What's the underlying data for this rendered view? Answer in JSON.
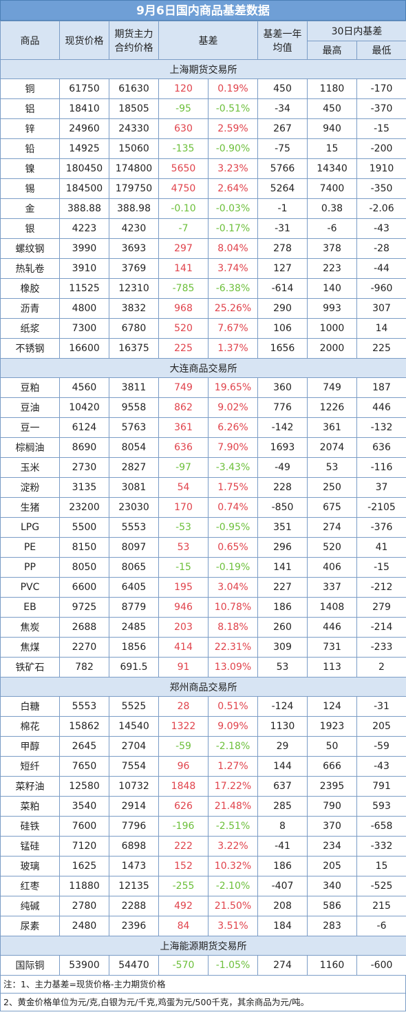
{
  "title": "9月6日国内商品基差数据",
  "headers": {
    "commodity": "商品",
    "spot": "现货价格",
    "futures_line1": "期货主力",
    "futures_line2": "合约价格",
    "basis": "基差",
    "avg_line1": "基差一年",
    "avg_line2": "均值",
    "range30": "30日内基差",
    "high": "最高",
    "low": "最低"
  },
  "sections": [
    {
      "name": "上海期货交易所",
      "rows": [
        [
          "铜",
          "61750",
          "61630",
          "120",
          "0.19%",
          "450",
          "1180",
          "-170"
        ],
        [
          "铝",
          "18410",
          "18505",
          "-95",
          "-0.51%",
          "-34",
          "450",
          "-370"
        ],
        [
          "锌",
          "24960",
          "24330",
          "630",
          "2.59%",
          "267",
          "940",
          "-15"
        ],
        [
          "铅",
          "14925",
          "15060",
          "-135",
          "-0.90%",
          "-75",
          "15",
          "-200"
        ],
        [
          "镍",
          "180450",
          "174800",
          "5650",
          "3.23%",
          "5766",
          "14340",
          "1910"
        ],
        [
          "锡",
          "184500",
          "179750",
          "4750",
          "2.64%",
          "5264",
          "7400",
          "-350"
        ],
        [
          "金",
          "388.88",
          "388.98",
          "-0.10",
          "-0.03%",
          "-1",
          "0.38",
          "-2.06"
        ],
        [
          "银",
          "4223",
          "4230",
          "-7",
          "-0.17%",
          "-31",
          "-6",
          "-43"
        ],
        [
          "螺纹钢",
          "3990",
          "3693",
          "297",
          "8.04%",
          "278",
          "378",
          "-28"
        ],
        [
          "热轧卷",
          "3910",
          "3769",
          "141",
          "3.74%",
          "127",
          "223",
          "-44"
        ],
        [
          "橡胶",
          "11525",
          "12310",
          "-785",
          "-6.38%",
          "-614",
          "140",
          "-960"
        ],
        [
          "沥青",
          "4800",
          "3832",
          "968",
          "25.26%",
          "290",
          "993",
          "307"
        ],
        [
          "纸浆",
          "7300",
          "6780",
          "520",
          "7.67%",
          "106",
          "1000",
          "14"
        ],
        [
          "不锈钢",
          "16600",
          "16375",
          "225",
          "1.37%",
          "1656",
          "2000",
          "225"
        ]
      ]
    },
    {
      "name": "大连商品交易所",
      "rows": [
        [
          "豆粕",
          "4560",
          "3811",
          "749",
          "19.65%",
          "360",
          "749",
          "187"
        ],
        [
          "豆油",
          "10420",
          "9558",
          "862",
          "9.02%",
          "776",
          "1226",
          "446"
        ],
        [
          "豆一",
          "6124",
          "5763",
          "361",
          "6.26%",
          "-142",
          "361",
          "-132"
        ],
        [
          "棕榈油",
          "8690",
          "8054",
          "636",
          "7.90%",
          "1693",
          "2074",
          "636"
        ],
        [
          "玉米",
          "2730",
          "2827",
          "-97",
          "-3.43%",
          "-49",
          "53",
          "-116"
        ],
        [
          "淀粉",
          "3135",
          "3081",
          "54",
          "1.75%",
          "228",
          "250",
          "37"
        ],
        [
          "生猪",
          "23200",
          "23030",
          "170",
          "0.74%",
          "-850",
          "675",
          "-2105"
        ],
        [
          "LPG",
          "5500",
          "5553",
          "-53",
          "-0.95%",
          "351",
          "274",
          "-376"
        ],
        [
          "PE",
          "8150",
          "8097",
          "53",
          "0.65%",
          "296",
          "520",
          "41"
        ],
        [
          "PP",
          "8050",
          "8065",
          "-15",
          "-0.19%",
          "141",
          "406",
          "-15"
        ],
        [
          "PVC",
          "6600",
          "6405",
          "195",
          "3.04%",
          "227",
          "337",
          "-212"
        ],
        [
          "EB",
          "9725",
          "8779",
          "946",
          "10.78%",
          "186",
          "1408",
          "279"
        ],
        [
          "焦炭",
          "2688",
          "2485",
          "203",
          "8.18%",
          "260",
          "446",
          "-214"
        ],
        [
          "焦煤",
          "2270",
          "1856",
          "414",
          "22.31%",
          "309",
          "731",
          "-233"
        ],
        [
          "铁矿石",
          "782",
          "691.5",
          "91",
          "13.09%",
          "53",
          "113",
          "2"
        ]
      ]
    },
    {
      "name": "郑州商品交易所",
      "rows": [
        [
          "白糖",
          "5553",
          "5525",
          "28",
          "0.51%",
          "-124",
          "124",
          "-31"
        ],
        [
          "棉花",
          "15862",
          "14540",
          "1322",
          "9.09%",
          "1130",
          "1923",
          "205"
        ],
        [
          "甲醇",
          "2645",
          "2704",
          "-59",
          "-2.18%",
          "29",
          "50",
          "-59"
        ],
        [
          "短纤",
          "7650",
          "7554",
          "96",
          "1.27%",
          "144",
          "666",
          "-43"
        ],
        [
          "菜籽油",
          "12580",
          "10732",
          "1848",
          "17.22%",
          "637",
          "2395",
          "791"
        ],
        [
          "菜粕",
          "3540",
          "2914",
          "626",
          "21.48%",
          "285",
          "790",
          "593"
        ],
        [
          "硅铁",
          "7600",
          "7796",
          "-196",
          "-2.51%",
          "8",
          "370",
          "-658"
        ],
        [
          "锰硅",
          "7120",
          "6898",
          "222",
          "3.22%",
          "-41",
          "234",
          "-332"
        ],
        [
          "玻璃",
          "1625",
          "1473",
          "152",
          "10.32%",
          "186",
          "205",
          "15"
        ],
        [
          "红枣",
          "11880",
          "12135",
          "-255",
          "-2.10%",
          "-407",
          "340",
          "-525"
        ],
        [
          "纯碱",
          "2780",
          "2288",
          "492",
          "21.50%",
          "208",
          "586",
          "215"
        ],
        [
          "尿素",
          "2480",
          "2396",
          "84",
          "3.51%",
          "184",
          "283",
          "-6"
        ]
      ]
    },
    {
      "name": "上海能源期货交易所",
      "rows": [
        [
          "国际铜",
          "53900",
          "54470",
          "-570",
          "-1.05%",
          "274",
          "1160",
          "-600"
        ]
      ]
    }
  ],
  "notes": [
    "注：1、主力基差=现货价格-主力期货价格",
    "2、黄金价格单位为元/克,白银为元/千克,鸡蛋为元/500千克，其余商品为元/吨。"
  ],
  "colors": {
    "positive": "#e0424b",
    "negative": "#6cbf3a",
    "header_bg": "#d7e4f3",
    "title_bg": "#6f9fd6"
  }
}
